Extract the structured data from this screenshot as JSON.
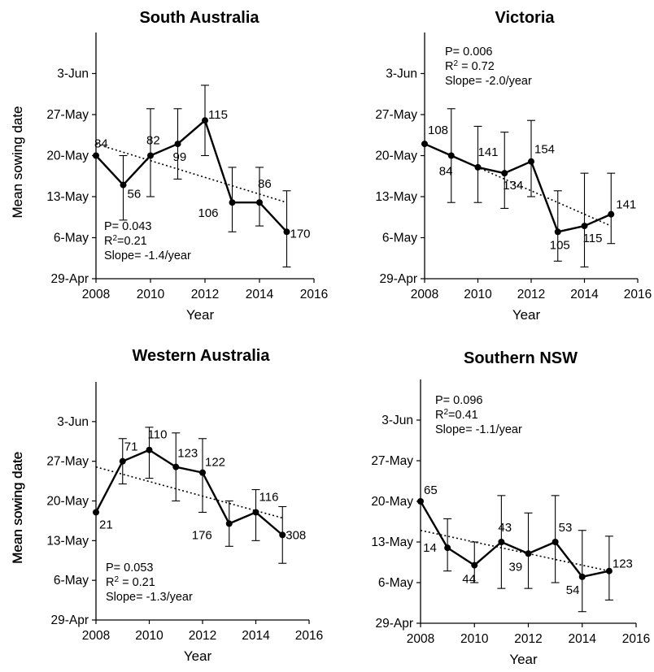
{
  "chart_data": [
    {
      "type": "line",
      "title": "South Australia",
      "xlabel": "Year",
      "ylabel": "Mean sowing date",
      "xlim": [
        2008,
        2016
      ],
      "xticks": [
        "2008",
        "2010",
        "2012",
        "2014",
        "2016"
      ],
      "ylim": [
        "29-Apr",
        "10-Jun"
      ],
      "yticks": [
        "29-Apr",
        "6-May",
        "13-May",
        "20-May",
        "27-May",
        "3-Jun"
      ],
      "series": [
        {
          "x": [
            2008,
            2009,
            2010,
            2011,
            2012,
            2013,
            2014,
            2015
          ],
          "y": [
            "20-May",
            "15-May",
            "20-May",
            "22-May",
            "26-May",
            "12-May",
            "12-May",
            "7-May"
          ],
          "error_low": [
            "",
            "9-May",
            "13-May",
            "16-May",
            "20-May",
            "7-May",
            "8-May",
            "1-May"
          ],
          "error_high": [
            "",
            "20-May",
            "28-May",
            "28-May",
            "1-Jun",
            "18-May",
            "18-May",
            "14-May"
          ],
          "labels": [
            "84",
            "56",
            "82",
            "99",
            "115",
            "106",
            "86",
            "170"
          ]
        }
      ],
      "trend": {
        "y_start": "22-May",
        "y_end": "12-May"
      },
      "stats": {
        "p": "P= 0.043",
        "r2_prefix": "R",
        "r2_suffix": "=0.21",
        "slope": "Slope= -1.4/year"
      }
    },
    {
      "type": "line",
      "title": "Victoria",
      "xlabel": "Year",
      "ylabel": "Mean sowing date",
      "xlim": [
        2008,
        2016
      ],
      "xticks": [
        "2008",
        "2010",
        "2012",
        "2014",
        "2016"
      ],
      "ylim": [
        "29-Apr",
        "10-Jun"
      ],
      "yticks": [
        "29-Apr",
        "6-May",
        "13-May",
        "20-May",
        "27-May",
        "3-Jun"
      ],
      "series": [
        {
          "x": [
            2008,
            2009,
            2010,
            2011,
            2012,
            2013,
            2014,
            2015
          ],
          "y": [
            "22-May",
            "20-May",
            "18-May",
            "17-May",
            "19-May",
            "7-May",
            "8-May",
            "10-May"
          ],
          "error_low": [
            "",
            "12-May",
            "12-May",
            "11-May",
            "13-May",
            "2-May",
            "1-May",
            "5-May"
          ],
          "error_high": [
            "",
            "28-May",
            "25-May",
            "24-May",
            "26-May",
            "14-May",
            "17-May",
            "17-May"
          ],
          "labels": [
            "108",
            "84",
            "141",
            "134",
            "154",
            "105",
            "115",
            "141"
          ]
        }
      ],
      "trend": {
        "y_start": "22-May",
        "y_end": "8-May"
      },
      "stats": {
        "p": "P= 0.006",
        "r2_prefix": "R",
        "r2_suffix": " = 0.72",
        "slope": "Slope= -2.0/year"
      }
    },
    {
      "type": "line",
      "title": "Western Australia",
      "xlabel": "Year",
      "ylabel": "Mean sowing date",
      "xlim": [
        2008,
        2016
      ],
      "xticks": [
        "2008",
        "2010",
        "2012",
        "2014",
        "2016"
      ],
      "ylim": [
        "29-Apr",
        "10-Jun"
      ],
      "yticks": [
        "29-Apr",
        "6-May",
        "13-May",
        "20-May",
        "27-May",
        "3-Jun"
      ],
      "series": [
        {
          "x": [
            2008,
            2009,
            2010,
            2011,
            2012,
            2013,
            2014,
            2015
          ],
          "y": [
            "18-May",
            "27-May",
            "29-May",
            "26-May",
            "25-May",
            "16-May",
            "18-May",
            "14-May"
          ],
          "error_low": [
            "",
            "23-May",
            "24-May",
            "20-May",
            "18-May",
            "12-May",
            "13-May",
            "9-May"
          ],
          "error_high": [
            "",
            "31-May",
            "2-Jun",
            "1-Jun",
            "31-May",
            "20-May",
            "22-May",
            "19-May"
          ],
          "labels": [
            "21",
            "71",
            "110",
            "123",
            "122",
            "176",
            "116",
            "308"
          ]
        }
      ],
      "trend": {
        "y_start": "26-May",
        "y_end": "17-May"
      },
      "stats": {
        "p": "P= 0.053",
        "r2_prefix": "R",
        "r2_suffix": " = 0.21",
        "slope": "Slope= -1.3/year"
      }
    },
    {
      "type": "line",
      "title": "Southern NSW",
      "xlabel": "Year",
      "ylabel": "Mean sowing date",
      "xlim": [
        2008,
        2016
      ],
      "xticks": [
        "2008",
        "2010",
        "2012",
        "2014",
        "2016"
      ],
      "ylim": [
        "29-Apr",
        "10-Jun"
      ],
      "yticks": [
        "29-Apr",
        "6-May",
        "13-May",
        "20-May",
        "27-May",
        "3-Jun"
      ],
      "series": [
        {
          "x": [
            2008,
            2009,
            2010,
            2011,
            2012,
            2013,
            2014,
            2015
          ],
          "y": [
            "20-May",
            "12-May",
            "9-May",
            "13-May",
            "11-May",
            "13-May",
            "7-May",
            "8-May"
          ],
          "error_low": [
            "",
            "8-May",
            "6-May",
            "5-May",
            "5-May",
            "6-May",
            "1-May",
            "3-May"
          ],
          "error_high": [
            "",
            "17-May",
            "13-May",
            "21-May",
            "18-May",
            "21-May",
            "15-May",
            "14-May"
          ],
          "labels": [
            "65",
            "14",
            "44",
            "43",
            "39",
            "53",
            "54",
            "123"
          ]
        }
      ],
      "trend": {
        "y_start": "15-May",
        "y_end": "8-May"
      },
      "stats": {
        "p": "P= 0.096",
        "r2_prefix": "R",
        "r2_suffix": "=0.41",
        "slope": "Slope= -1.1/year"
      }
    }
  ]
}
